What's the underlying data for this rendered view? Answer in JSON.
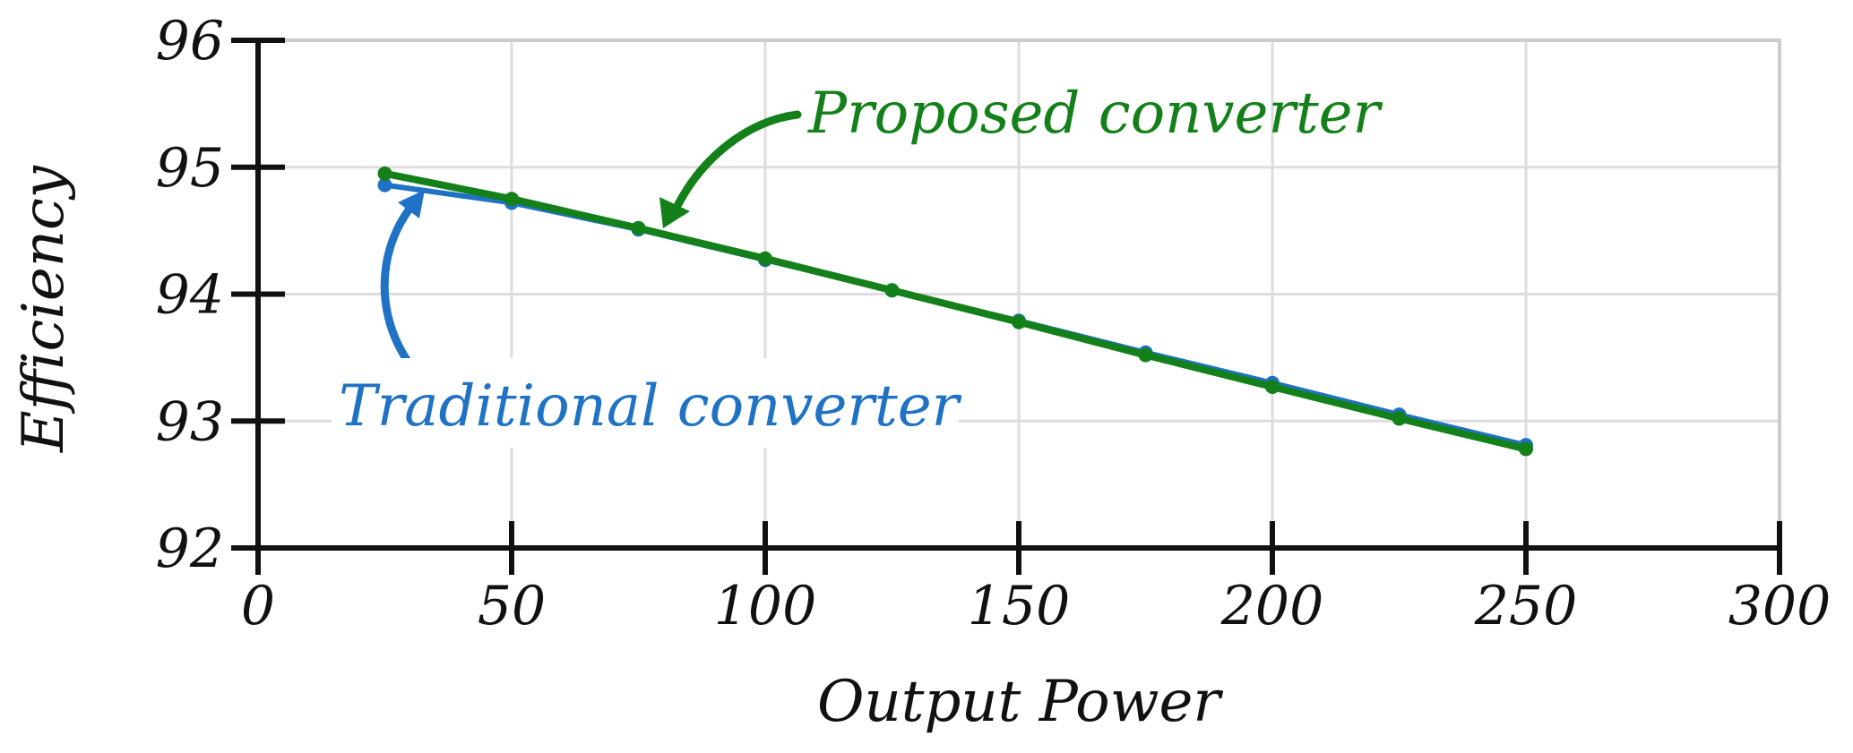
{
  "chart_data": {
    "type": "line",
    "title": "",
    "xlabel": "Output Power",
    "ylabel": "Efficiency",
    "xlim": [
      0,
      300
    ],
    "ylim": [
      92,
      96
    ],
    "xticks": [
      0,
      50,
      100,
      150,
      200,
      250,
      300
    ],
    "yticks": [
      92,
      93,
      94,
      95,
      96
    ],
    "grid": true,
    "legend": "none",
    "series": [
      {
        "label": "Traditional converter",
        "color": "#1f72c4",
        "x": [
          25,
          50,
          75,
          100,
          125,
          150,
          175,
          200,
          225,
          250
        ],
        "y": [
          94.86,
          94.72,
          94.51,
          94.27,
          94.03,
          93.79,
          93.54,
          93.3,
          93.05,
          92.81
        ]
      },
      {
        "label": "Proposed converter",
        "color": "#13801a",
        "x": [
          25,
          50,
          75,
          100,
          125,
          150,
          175,
          200,
          225,
          250
        ],
        "y": [
          94.95,
          94.75,
          94.52,
          94.28,
          94.03,
          93.78,
          93.52,
          93.27,
          93.02,
          92.78
        ]
      }
    ],
    "annotations": [
      {
        "text": "Proposed converter",
        "series": 1,
        "point_x": 80,
        "point_y": 94.5
      },
      {
        "text": "Traditional converter",
        "series": 0,
        "point_x": 33,
        "point_y": 94.85
      }
    ]
  }
}
